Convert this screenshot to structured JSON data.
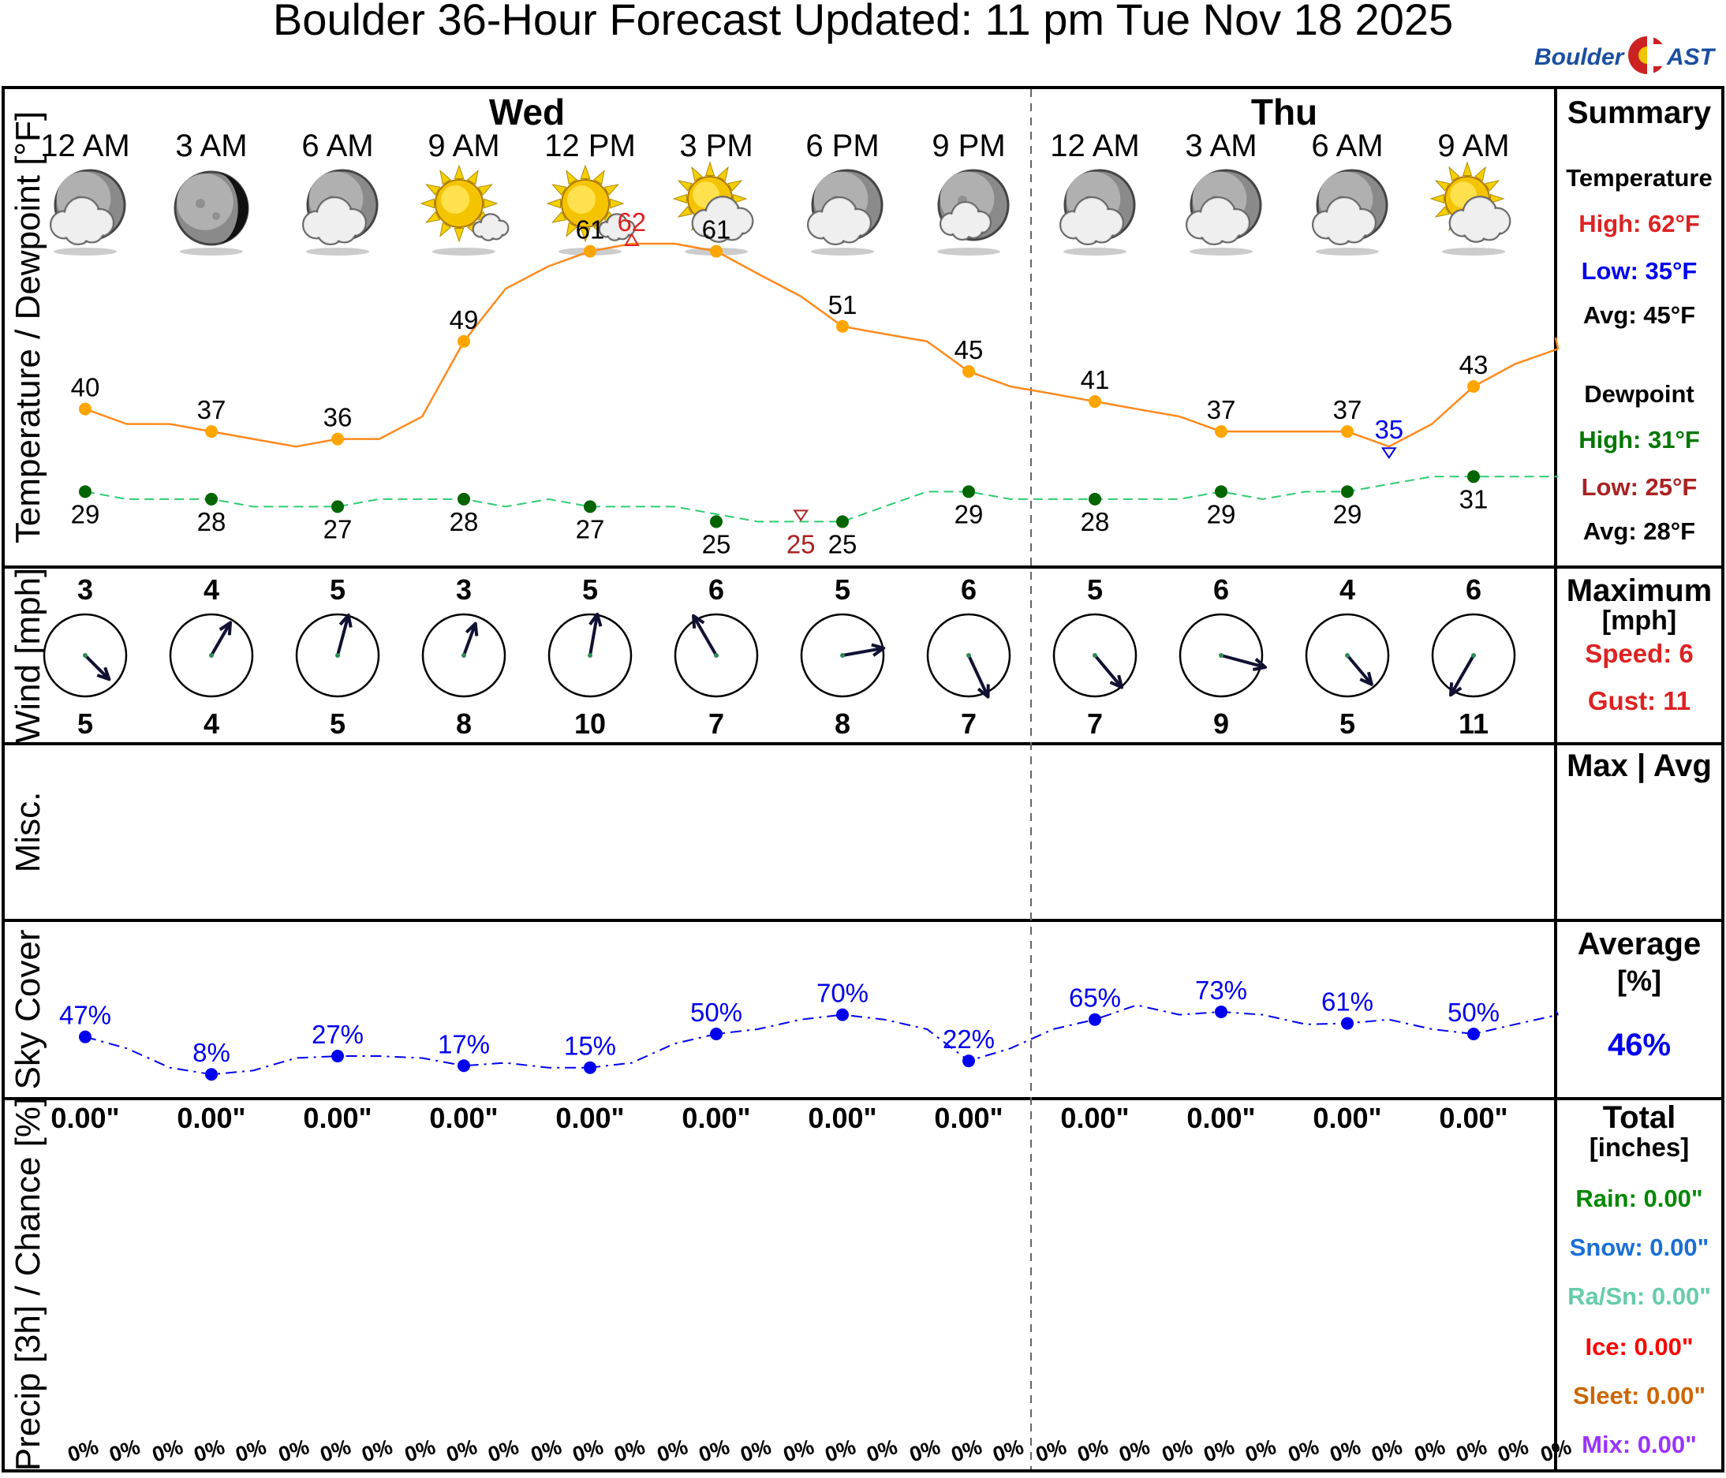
{
  "title": "Boulder 36-Hour Forecast Updated: 11 pm Tue Nov 18 2025",
  "logo": {
    "part1": "Boulder",
    "part2": "AST"
  },
  "colors": {
    "temp": "#ff8a1e",
    "temp_dot": "#ffa500",
    "dew_line": "#2ecc71",
    "dew_dot": "#006400",
    "sky": "#0000ee",
    "high": "#dd2222",
    "low_temp": "#0000ee",
    "dew_high": "#007700",
    "dew_low": "#aa2222",
    "rain": "#008800",
    "snow": "#1a6fd6",
    "rasn": "#66ccaa",
    "ice": "#ff0000",
    "sleet": "#cc6600",
    "mix": "#9933ff",
    "wind_arrow": "#111133"
  },
  "days": [
    {
      "label": "Wed",
      "after_index": 3.5
    },
    {
      "label": "Thu",
      "after_index": 9.5
    }
  ],
  "times": [
    "12 AM",
    "3 AM",
    "6 AM",
    "9 AM",
    "12 PM",
    "3 PM",
    "6 PM",
    "9 PM",
    "12 AM",
    "3 AM",
    "6 AM",
    "9 AM"
  ],
  "icons": [
    "partly-cloudy-night-icon",
    "clear-night-icon",
    "partly-cloudy-night-icon",
    "sunny-few-clouds-icon",
    "sunny-few-clouds-icon",
    "partly-sunny-icon",
    "partly-cloudy-night-icon",
    "mostly-clear-night-icon",
    "partly-cloudy-night-icon",
    "partly-cloudy-night-icon",
    "partly-cloudy-night-icon",
    "partly-sunny-icon"
  ],
  "axis_titles": {
    "temperature": "Temperature / Dewpoint [°F]",
    "wind": "Wind [mph]",
    "misc": "Misc.",
    "sky": "Sky Cover",
    "precip": "Precip [3h] / Chance [%]"
  },
  "chart_data": {
    "type": "line",
    "x": [
      "12 AM",
      "3 AM",
      "6 AM",
      "9 AM",
      "12 PM",
      "3 PM",
      "6 PM",
      "9 PM",
      "12 AM",
      "3 AM",
      "6 AM",
      "9 AM"
    ],
    "temperature": {
      "labeled": [
        40,
        37,
        36,
        49,
        61,
        61,
        51,
        45,
        41,
        37,
        37,
        43
      ],
      "hourly_t": [
        0,
        0.33,
        0.67,
        1,
        1.33,
        1.67,
        2,
        2.33,
        2.67,
        3,
        3.33,
        3.67,
        4,
        4.33,
        4.67,
        5,
        5.33,
        5.67,
        6,
        6.33,
        6.67,
        7,
        7.33,
        7.67,
        8,
        8.33,
        8.67,
        9,
        9.33,
        9.67,
        10,
        10.33,
        10.67,
        11,
        11.33,
        11.67
      ],
      "hourly": [
        40,
        38,
        38,
        37,
        36,
        35,
        36,
        36,
        39,
        49,
        56,
        59,
        61,
        62,
        62,
        61,
        58,
        55,
        51,
        50,
        49,
        45,
        43,
        42,
        41,
        40,
        39,
        37,
        37,
        37,
        37,
        35,
        38,
        43,
        46,
        48
      ],
      "high": {
        "value": 62,
        "t": 4.33,
        "label": "62"
      },
      "low": {
        "value": 35,
        "t": 10.33,
        "label": "35"
      },
      "labels": [
        "40",
        "37",
        "36",
        "49",
        "61",
        "61",
        "51",
        "45",
        "41",
        "37",
        "37",
        "43"
      ]
    },
    "dewpoint": {
      "labeled": [
        29,
        28,
        27,
        28,
        27,
        25,
        25,
        29,
        28,
        29,
        29,
        31
      ],
      "hourly": [
        29,
        28,
        28,
        28,
        27,
        27,
        27,
        28,
        28,
        28,
        27,
        28,
        27,
        27,
        27,
        26,
        25,
        25,
        25,
        27,
        29,
        29,
        28,
        28,
        28,
        28,
        28,
        29,
        28,
        29,
        29,
        30,
        31,
        31,
        31,
        31
      ],
      "low": {
        "value": 25,
        "t": 5.67,
        "label": "25"
      },
      "labels": [
        "29",
        "28",
        "27",
        "28",
        "27",
        "25",
        "25",
        "29",
        "28",
        "29",
        "29",
        "31"
      ]
    },
    "wind": {
      "speed": [
        3,
        4,
        5,
        3,
        5,
        6,
        5,
        6,
        5,
        6,
        4,
        6
      ],
      "gust": [
        5,
        4,
        5,
        8,
        10,
        7,
        8,
        7,
        7,
        9,
        5,
        11
      ],
      "speed_labels": [
        "3",
        "4",
        "5",
        "3",
        "5",
        "6",
        "5",
        "6",
        "5",
        "6",
        "4",
        "6"
      ],
      "gust_labels": [
        "5",
        "4",
        "5",
        "8",
        "10",
        "7",
        "8",
        "7",
        "7",
        "9",
        "5",
        "11"
      ],
      "to_direction_deg": [
        135,
        30,
        15,
        20,
        10,
        330,
        80,
        155,
        140,
        105,
        140,
        210
      ]
    },
    "sky_cover": {
      "labeled": [
        47,
        8,
        27,
        17,
        15,
        50,
        70,
        22,
        65,
        73,
        61,
        50
      ],
      "labels": [
        "47%",
        "8%",
        "27%",
        "17%",
        "15%",
        "50%",
        "70%",
        "22%",
        "65%",
        "73%",
        "61%",
        "50%"
      ],
      "hourly": [
        47,
        35,
        15,
        8,
        12,
        25,
        27,
        27,
        25,
        17,
        20,
        15,
        15,
        20,
        40,
        50,
        55,
        65,
        70,
        65,
        55,
        22,
        35,
        55,
        65,
        80,
        70,
        73,
        70,
        60,
        61,
        65,
        55,
        50,
        60,
        70
      ],
      "ylim": [
        0,
        100
      ]
    },
    "precip": {
      "amounts": [
        "0.00\"",
        "0.00\"",
        "0.00\"",
        "0.00\"",
        "0.00\"",
        "0.00\"",
        "0.00\"",
        "0.00\"",
        "0.00\"",
        "0.00\"",
        "0.00\"",
        "0.00\""
      ],
      "chances": [
        0,
        0,
        0,
        0,
        0,
        0,
        0,
        0,
        0,
        0,
        0,
        0,
        0,
        0,
        0,
        0,
        0,
        0,
        0,
        0,
        0,
        0,
        0,
        0,
        0,
        0,
        0,
        0,
        0,
        0,
        0,
        0,
        0,
        0,
        0,
        0
      ],
      "chance_labels": [
        "0%",
        "0%",
        "0%",
        "0%",
        "0%",
        "0%",
        "0%",
        "0%",
        "0%",
        "0%",
        "0%",
        "0%",
        "0%",
        "0%",
        "0%",
        "0%",
        "0%",
        "0%",
        "0%",
        "0%",
        "0%",
        "0%",
        "0%",
        "0%",
        "0%",
        "0%",
        "0%",
        "0%",
        "0%",
        "0%",
        "0%",
        "0%",
        "0%",
        "0%",
        "0%",
        "0%"
      ]
    },
    "ylim_temp": [
      22,
      64
    ]
  },
  "summary": {
    "temp_section": {
      "title": "Summary",
      "temperature_label": "Temperature",
      "high": "High: 62°F",
      "low": "Low: 35°F",
      "avg": "Avg: 45°F",
      "dewpoint_label": "Dewpoint",
      "dew_high": "High: 31°F",
      "dew_low": "Low: 25°F",
      "dew_avg": "Avg: 28°F"
    },
    "wind_section": {
      "title": "Maximum",
      "unit": "[mph]",
      "speed": "Speed: 6",
      "gust": "Gust: 11"
    },
    "misc_section": {
      "title": "Max | Avg"
    },
    "sky_section": {
      "title": "Average",
      "unit": "[%]",
      "value": "46%"
    },
    "precip_section": {
      "title": "Total",
      "unit": "[inches]",
      "rain": "Rain: 0.00\"",
      "snow": "Snow: 0.00\"",
      "rasn": "Ra/Sn: 0.00\"",
      "ice": "Ice: 0.00\"",
      "sleet": "Sleet: 0.00\"",
      "mix": "Mix: 0.00\""
    }
  }
}
